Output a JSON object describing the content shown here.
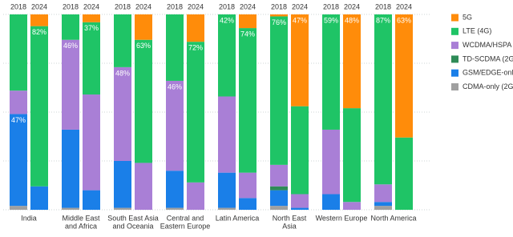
{
  "chart_data": {
    "type": "stacked_bar",
    "groups": [
      [
        "India"
      ],
      [
        "Middle East",
        "and Africa"
      ],
      [
        "South East Asia",
        "and Oceania"
      ],
      [
        "Central and",
        "Eastern Europe"
      ],
      [
        "Latin America"
      ],
      [
        "North East",
        "Asia"
      ],
      [
        "Western Europe"
      ],
      [
        "North America"
      ]
    ],
    "categories": [
      "2018",
      "2024",
      "2018",
      "2024",
      "2018",
      "2024",
      "2018",
      "2024",
      "2018",
      "2024",
      "2018",
      "2024",
      "2018",
      "2024",
      "2018",
      "2024"
    ],
    "ylim": [
      0,
      100
    ],
    "yticks": [
      0,
      25,
      50,
      75,
      100
    ],
    "grid": true,
    "series": [
      {
        "name": "5G",
        "color": "#ff8c0a",
        "values": [
          0,
          6,
          0,
          4,
          0,
          13,
          0,
          14,
          0,
          7,
          1,
          47,
          0,
          48,
          0,
          63
        ],
        "value_labels": [
          null,
          null,
          null,
          null,
          null,
          null,
          null,
          null,
          null,
          null,
          null,
          "47%",
          null,
          "48%",
          null,
          "63%"
        ]
      },
      {
        "name": "LTE (4G)",
        "color": "#1fc466",
        "values": [
          39,
          82,
          13,
          37,
          27,
          63,
          34,
          72,
          42,
          74,
          76,
          45,
          59,
          48,
          87,
          37
        ],
        "value_labels": [
          null,
          "82%",
          null,
          "37%",
          null,
          "63%",
          null,
          "72%",
          "42%",
          "74%",
          "76%",
          null,
          "59%",
          null,
          "87%",
          null
        ]
      },
      {
        "name": "WCDMA/HSPA (3G)",
        "color": "#a97fd6",
        "values": [
          12,
          0,
          46,
          49,
          48,
          24,
          46,
          14,
          39,
          13,
          11,
          7,
          33,
          4,
          9,
          0
        ],
        "value_labels": [
          null,
          null,
          "46%",
          null,
          "48%",
          null,
          "46%",
          null,
          null,
          null,
          null,
          null,
          null,
          null,
          null,
          null
        ]
      },
      {
        "name": "TD-SCDMA (2G/3G)",
        "color": "#2e8b57",
        "values": [
          0,
          0,
          0,
          0,
          0,
          0,
          0,
          0,
          0,
          0,
          2,
          0,
          0,
          0,
          0,
          0
        ]
      },
      {
        "name": "GSM/EDGE-only (2G)",
        "color": "#1a7fe8",
        "values": [
          47,
          12,
          40,
          10,
          24,
          0,
          19,
          0,
          18,
          6,
          8,
          1,
          8,
          0,
          2,
          0
        ],
        "value_labels": [
          "47%",
          null,
          null,
          null,
          null,
          null,
          null,
          null,
          null,
          null,
          null,
          null,
          null,
          null,
          null,
          null
        ]
      },
      {
        "name": "CDMA-only (2G/3G)",
        "color": "#a0a0a0",
        "values": [
          2,
          0,
          1,
          0,
          1,
          0,
          1,
          0,
          1,
          0,
          2,
          0,
          0,
          0,
          2,
          0
        ]
      }
    ]
  }
}
